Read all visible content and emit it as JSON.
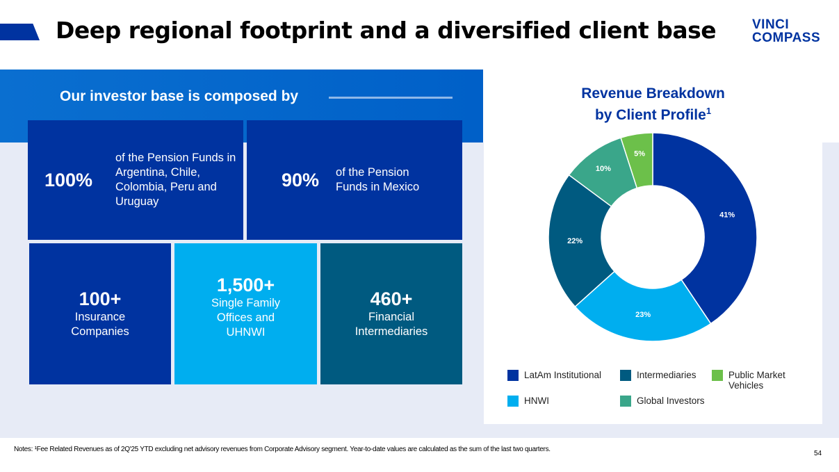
{
  "title": "Deep regional footprint and a diversified client base",
  "logo": {
    "line1": "VINCI",
    "line2": "COMPASS"
  },
  "left": {
    "subtitle": "Our investor base is composed by",
    "boxes": [
      {
        "value": "100%",
        "text": "of the Pension Funds in Argentina, Chile, Colombia, Peru and Uruguay",
        "color": "#0033a0"
      },
      {
        "value": "90%",
        "text": "of the Pension Funds in Mexico",
        "color": "#0033a0"
      },
      {
        "value": "100+",
        "text": "Insurance Companies",
        "color": "#0033a0"
      },
      {
        "value": "1,500+",
        "text": "Single Family Offices and UHNWI",
        "color": "#00aeef"
      },
      {
        "value": "460+",
        "text": "Financial Intermediaries",
        "color": "#005a80"
      }
    ]
  },
  "chart_data": {
    "type": "pie",
    "title": "Revenue Breakdown by Client Profile",
    "title_line1": "Revenue Breakdown",
    "title_line2": "by Client Profile",
    "footnote_mark": "1",
    "donut": true,
    "slices": [
      {
        "name": "LatAm Institutional",
        "value": 41,
        "label": "41%",
        "color": "#0033a0"
      },
      {
        "name": "HNWI",
        "value": 23,
        "label": "23%",
        "color": "#00aeef"
      },
      {
        "name": "Intermediaries",
        "value": 22,
        "label": "22%",
        "color": "#005a80"
      },
      {
        "name": "Global Investors",
        "value": 10,
        "label": "10%",
        "color": "#3aa68a"
      },
      {
        "name": "Public Market Vehicles",
        "value": 5,
        "label": "5%",
        "color": "#6cc04a"
      }
    ],
    "legend_placement": "bottom"
  },
  "notes": "Notes: ¹Fee Related Revenues as of 2Q'25 YTD excluding net advisory revenues from Corporate Advisory segment. Year-to-date values are calculated as the sum of the last two quarters.",
  "page_number": "54"
}
